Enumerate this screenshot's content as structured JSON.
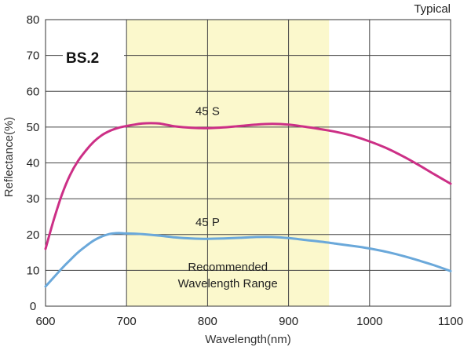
{
  "chart_data": {
    "type": "line",
    "title": "BS.2",
    "corner_label": "Typical",
    "xlabel": "Wavelength(nm)",
    "ylabel": "Reflectance(%)",
    "xlim": [
      600,
      1100
    ],
    "ylim": [
      0,
      80
    ],
    "x_ticks": [
      600,
      700,
      800,
      900,
      1000,
      1100
    ],
    "y_ticks": [
      0,
      10,
      20,
      30,
      40,
      50,
      60,
      70,
      80
    ],
    "shaded_band": {
      "from": 700,
      "to": 950,
      "label_line1": "Recommended",
      "label_line2": "Wavelength Range",
      "color": "#fbf8cc"
    },
    "series": [
      {
        "name": "45 S",
        "color": "#cc2f86",
        "points": [
          [
            600,
            16
          ],
          [
            610,
            24
          ],
          [
            620,
            31
          ],
          [
            630,
            36.5
          ],
          [
            640,
            40.5
          ],
          [
            650,
            43.5
          ],
          [
            660,
            46
          ],
          [
            670,
            47.8
          ],
          [
            680,
            49
          ],
          [
            690,
            49.8
          ],
          [
            700,
            50.3
          ],
          [
            710,
            50.7
          ],
          [
            720,
            51
          ],
          [
            730,
            51.1
          ],
          [
            740,
            51
          ],
          [
            750,
            50.6
          ],
          [
            760,
            50.2
          ],
          [
            780,
            49.8
          ],
          [
            800,
            49.7
          ],
          [
            820,
            49.9
          ],
          [
            840,
            50.3
          ],
          [
            860,
            50.7
          ],
          [
            880,
            50.9
          ],
          [
            900,
            50.7
          ],
          [
            920,
            50.1
          ],
          [
            940,
            49.4
          ],
          [
            960,
            48.6
          ],
          [
            980,
            47.5
          ],
          [
            1000,
            46
          ],
          [
            1020,
            44.2
          ],
          [
            1040,
            42
          ],
          [
            1060,
            39.5
          ],
          [
            1080,
            36.8
          ],
          [
            1100,
            34.2
          ]
        ]
      },
      {
        "name": "45 P",
        "color": "#6aa8da",
        "points": [
          [
            600,
            5.5
          ],
          [
            610,
            8
          ],
          [
            620,
            10.5
          ],
          [
            630,
            12.8
          ],
          [
            640,
            15
          ],
          [
            650,
            16.8
          ],
          [
            660,
            18.4
          ],
          [
            670,
            19.5
          ],
          [
            680,
            20.2
          ],
          [
            690,
            20.4
          ],
          [
            700,
            20.3
          ],
          [
            720,
            20.1
          ],
          [
            740,
            19.7
          ],
          [
            760,
            19.2
          ],
          [
            780,
            18.9
          ],
          [
            800,
            18.8
          ],
          [
            820,
            18.9
          ],
          [
            840,
            19.1
          ],
          [
            860,
            19.3
          ],
          [
            880,
            19.3
          ],
          [
            900,
            19
          ],
          [
            920,
            18.5
          ],
          [
            940,
            18
          ],
          [
            960,
            17.4
          ],
          [
            980,
            16.8
          ],
          [
            1000,
            16.1
          ],
          [
            1020,
            15.2
          ],
          [
            1040,
            14.1
          ],
          [
            1060,
            12.8
          ],
          [
            1080,
            11.4
          ],
          [
            1100,
            9.8
          ]
        ]
      }
    ],
    "series_label_positions": [
      {
        "name": "45 S",
        "x": 800,
        "y": 54.5
      },
      {
        "name": "45 P",
        "x": 800,
        "y": 23.5
      }
    ]
  }
}
